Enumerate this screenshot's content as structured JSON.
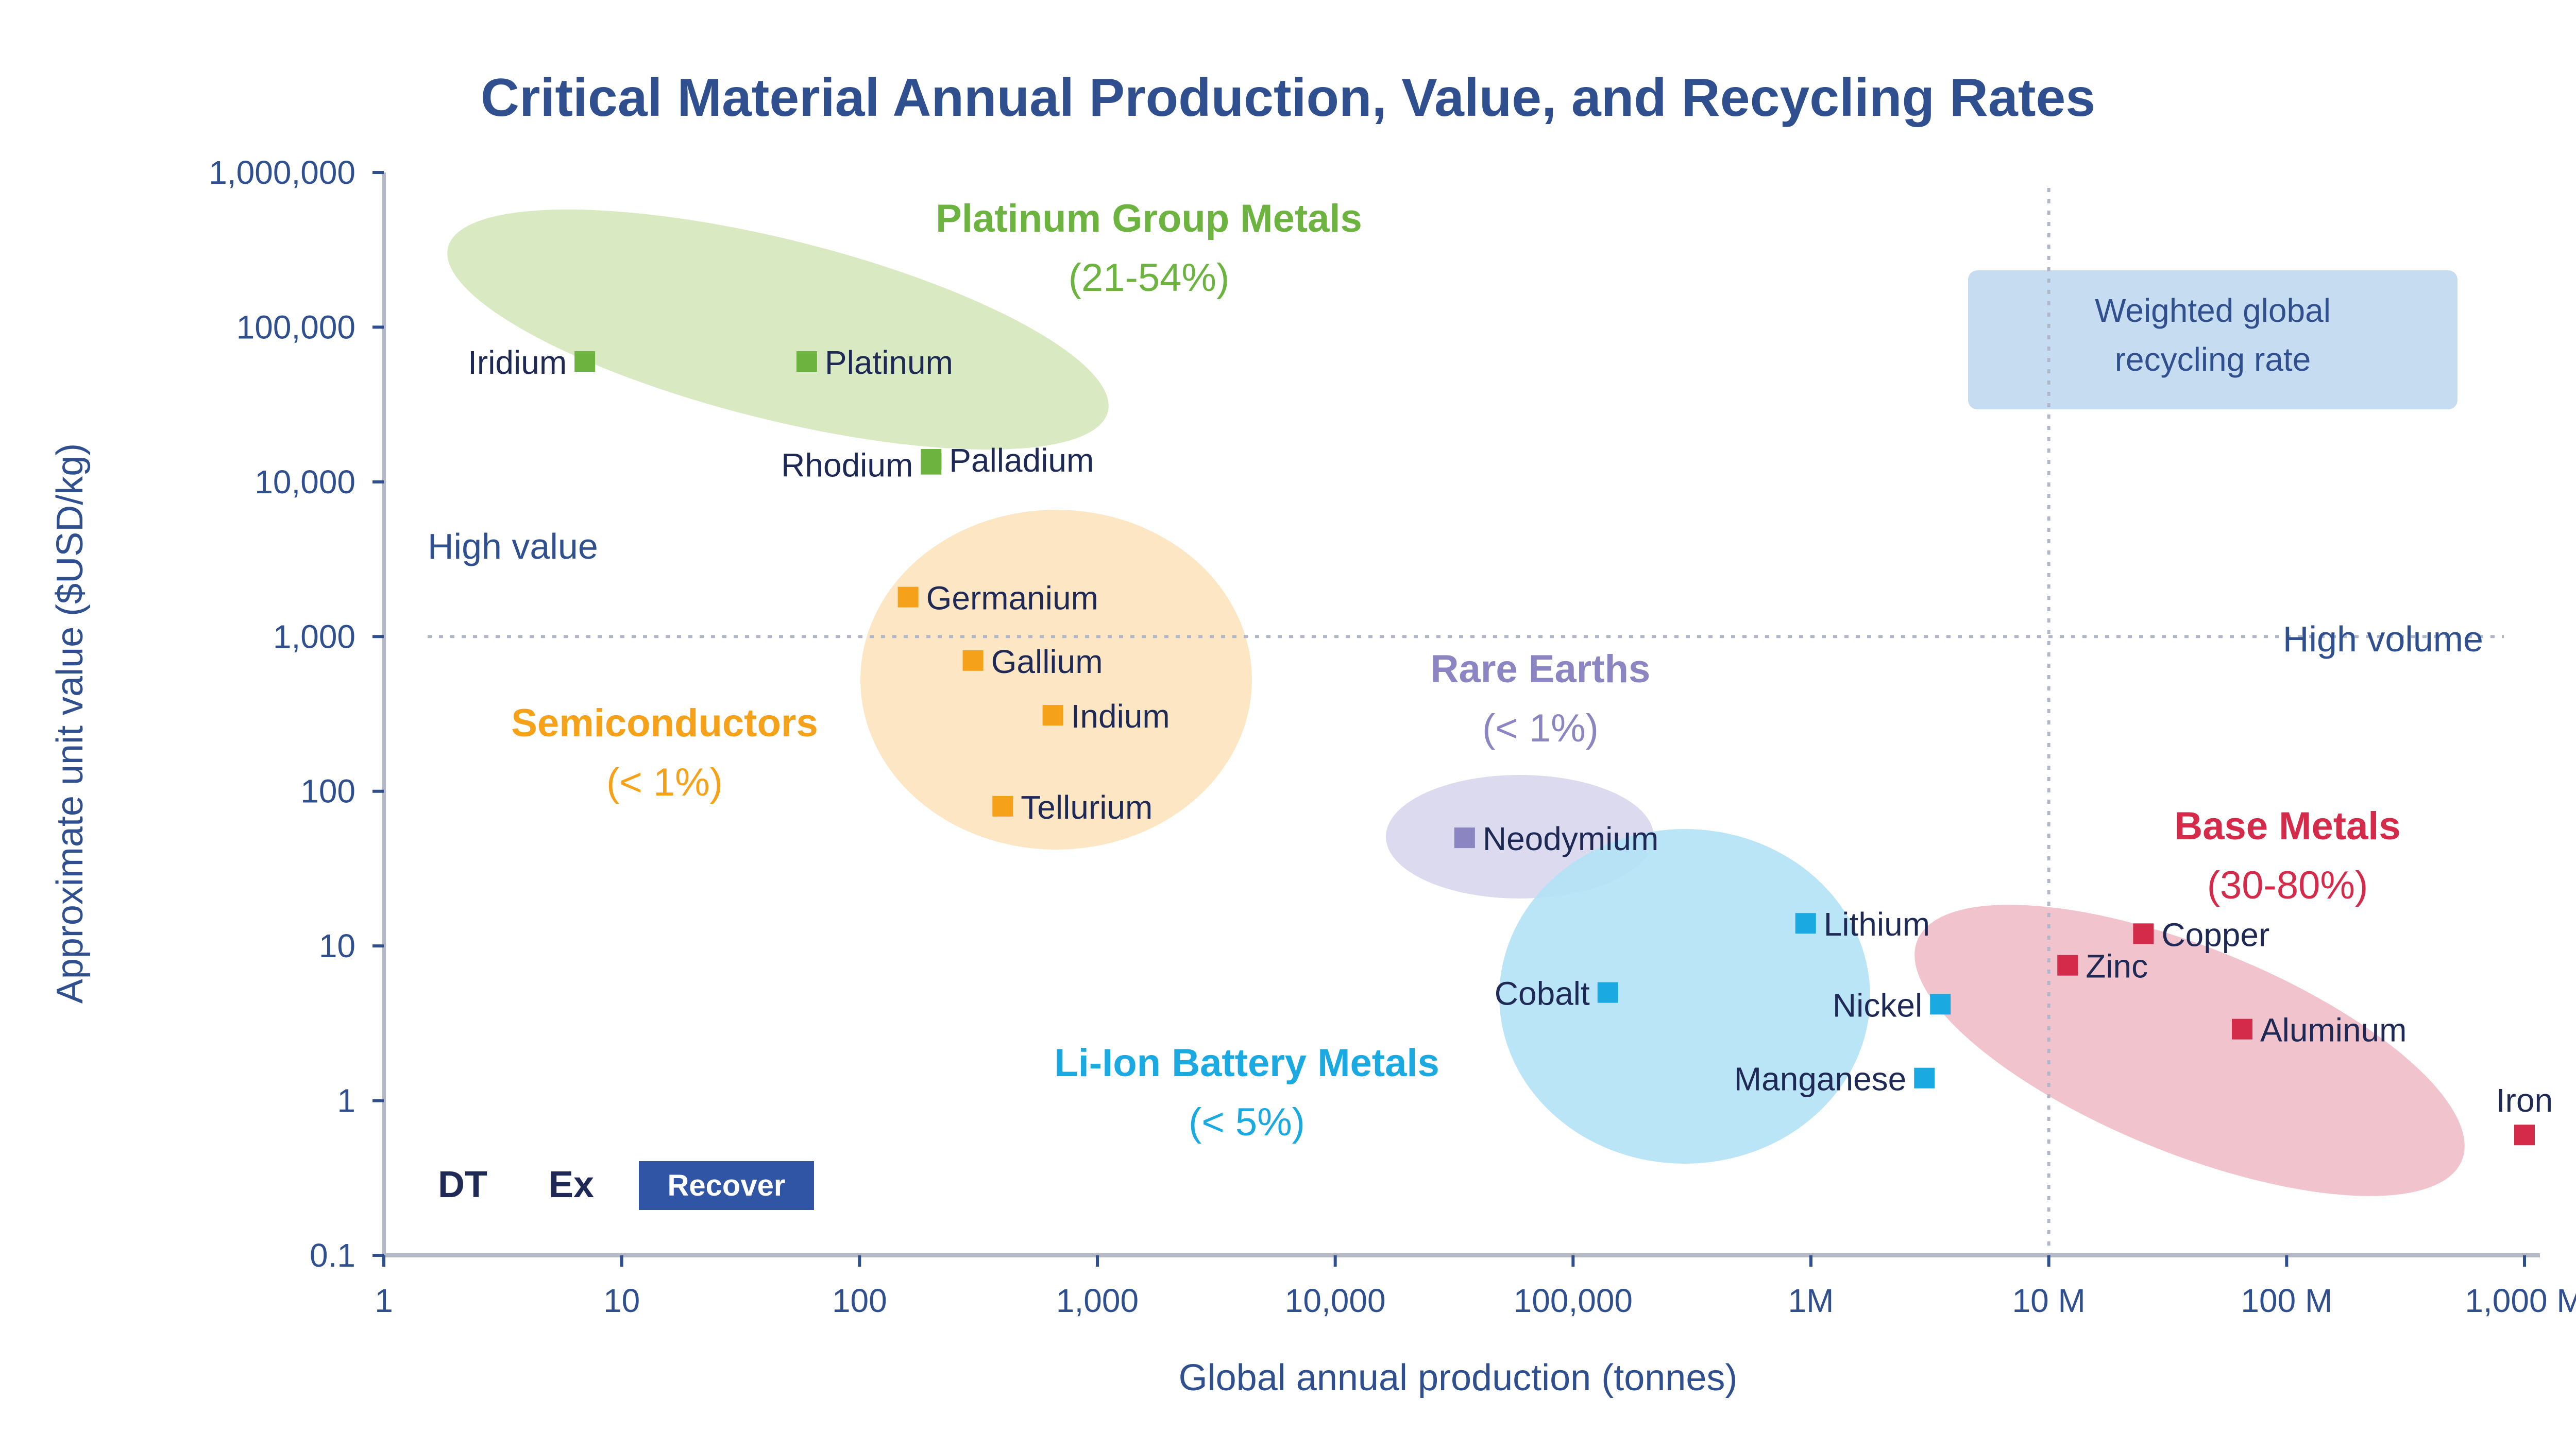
{
  "chart_data": {
    "type": "scatter",
    "title": "Critical Material Annual Production, Value, and Recycling Rates",
    "xlabel": "Global annual production (tonnes)",
    "ylabel": "Approximate unit value ($USD/kg)",
    "x_scale": "log",
    "y_scale": "log",
    "xlim": [
      1,
      1000000000
    ],
    "ylim": [
      0.1,
      1000000
    ],
    "x_ticks": [
      {
        "v": 1,
        "label": "1"
      },
      {
        "v": 10,
        "label": "10"
      },
      {
        "v": 100,
        "label": "100"
      },
      {
        "v": 1000,
        "label": "1,000"
      },
      {
        "v": 10000,
        "label": "10,000"
      },
      {
        "v": 100000,
        "label": "100,000"
      },
      {
        "v": 1000000,
        "label": "1M"
      },
      {
        "v": 10000000,
        "label": "10 M"
      },
      {
        "v": 100000000,
        "label": "100 M"
      },
      {
        "v": 1000000000,
        "label": "1,000 M"
      }
    ],
    "y_ticks": [
      {
        "v": 0.1,
        "label": "0.1"
      },
      {
        "v": 1,
        "label": "1"
      },
      {
        "v": 10,
        "label": "10"
      },
      {
        "v": 100,
        "label": "100"
      },
      {
        "v": 1000,
        "label": "1,000"
      },
      {
        "v": 10000,
        "label": "10,000"
      },
      {
        "v": 100000,
        "label": "100,000"
      },
      {
        "v": 1000000,
        "label": "1,000,000"
      }
    ],
    "threshold_x": 10000000,
    "threshold_y": 1000,
    "quadrant_labels": {
      "high_value": "High value",
      "high_volume": "High volume"
    },
    "note": "Weighted global recycling rate",
    "button": {
      "prefix": "DT",
      "number": "Ex",
      "label": "Recover"
    },
    "groups": [
      {
        "name": "Platinum Group Metals",
        "rate": "(21-54%)",
        "color": "#6cb33f",
        "fill": "#d5e8bd"
      },
      {
        "name": "Semiconductors",
        "rate": "(< 1%)",
        "color": "#f5a21a",
        "fill": "#fde3bd"
      },
      {
        "name": "Rare Earths",
        "rate": "(< 1%)",
        "color": "#8b86c2",
        "fill": "#d8d6ec"
      },
      {
        "name": "Li-Ion Battery Metals",
        "rate": "(< 5%)",
        "color": "#1aa9e0",
        "fill": "#b3e2f5"
      },
      {
        "name": "Base Metals",
        "rate": "(30-80%)",
        "color": "#d52b4b",
        "fill": "#f0bcc7"
      }
    ],
    "points": [
      {
        "label": "Iridium",
        "x": 7,
        "y": 60000,
        "group": 0,
        "label_side": "left"
      },
      {
        "label": "Platinum",
        "x": 60,
        "y": 60000,
        "group": 0,
        "label_side": "right"
      },
      {
        "label": "Rhodium",
        "x": 200,
        "y": 13000,
        "group": 0,
        "label_side": "left"
      },
      {
        "label": "Palladium",
        "x": 200,
        "y": 14000,
        "group": 0,
        "label_side": "right"
      },
      {
        "label": "Germanium",
        "x": 160,
        "y": 1800,
        "group": 1,
        "label_side": "right"
      },
      {
        "label": "Gallium",
        "x": 300,
        "y": 700,
        "group": 1,
        "label_side": "right"
      },
      {
        "label": "Indium",
        "x": 650,
        "y": 310,
        "group": 1,
        "label_side": "right"
      },
      {
        "label": "Tellurium",
        "x": 400,
        "y": 80,
        "group": 1,
        "label_side": "right"
      },
      {
        "label": "Neodymium",
        "x": 35000,
        "y": 50,
        "group": 2,
        "label_side": "right"
      },
      {
        "label": "Lithium",
        "x": 950000,
        "y": 14,
        "group": 3,
        "label_side": "right"
      },
      {
        "label": "Cobalt",
        "x": 140000,
        "y": 5,
        "group": 3,
        "label_side": "left"
      },
      {
        "label": "Nickel",
        "x": 3500000,
        "y": 4.2,
        "group": 3,
        "label_side": "left"
      },
      {
        "label": "Manganese",
        "x": 3000000,
        "y": 1.4,
        "group": 3,
        "label_side": "left"
      },
      {
        "label": "Zinc",
        "x": 12000000,
        "y": 7.5,
        "group": 4,
        "label_side": "right"
      },
      {
        "label": "Copper",
        "x": 25000000,
        "y": 12,
        "group": 4,
        "label_side": "right"
      },
      {
        "label": "Aluminum",
        "x": 65000000,
        "y": 2.9,
        "group": 4,
        "label_side": "right"
      },
      {
        "label": "Iron",
        "x": 1000000000,
        "y": 0.6,
        "group": 4,
        "label_side": "above"
      }
    ]
  }
}
